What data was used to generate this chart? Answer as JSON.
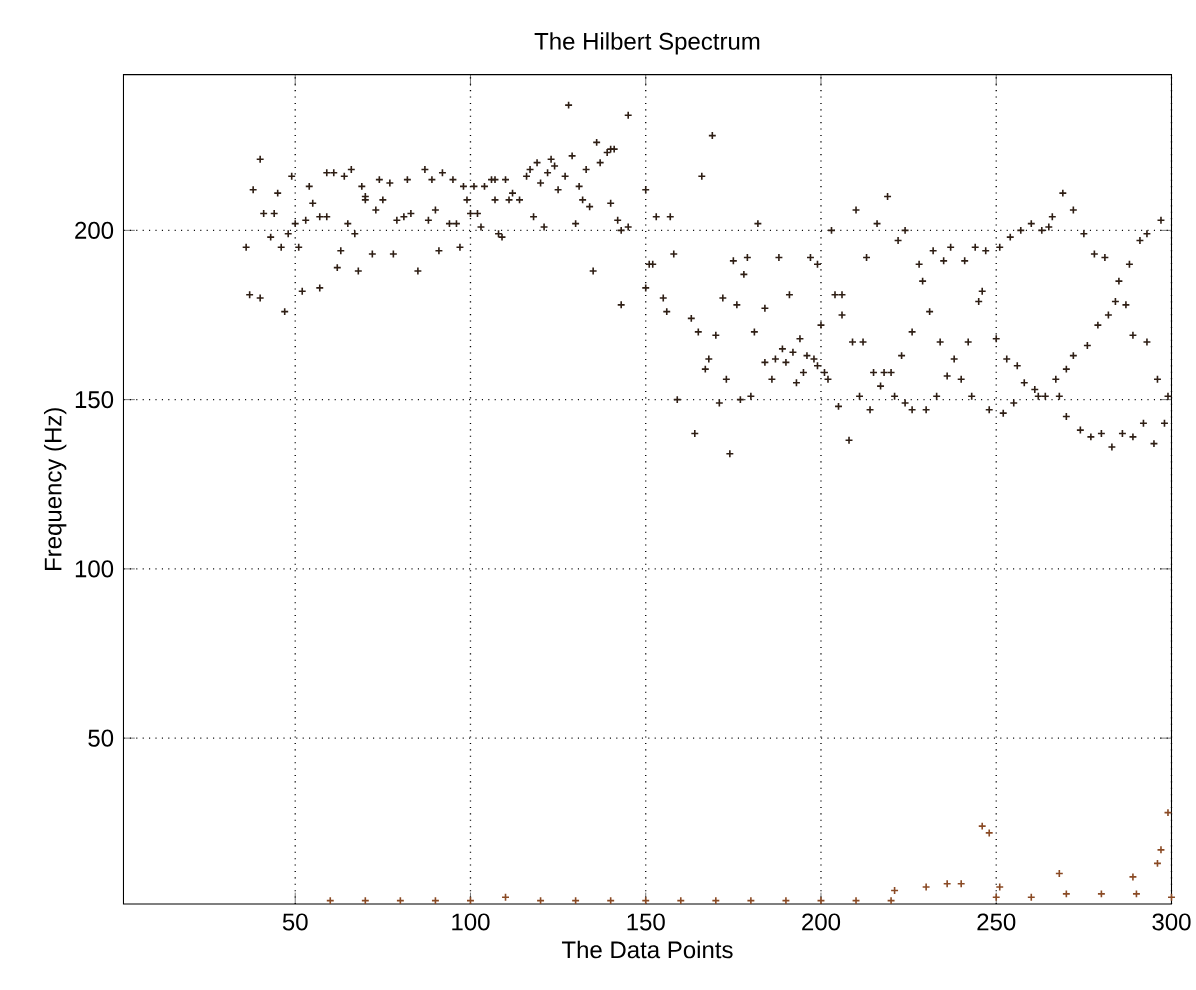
{
  "chart_data": {
    "type": "scatter",
    "title": "The Hilbert Spectrum",
    "xlabel": "The Data Points",
    "ylabel": "Frequency (Hz)",
    "xlim": [
      1,
      300
    ],
    "ylim": [
      1,
      246
    ],
    "xticks": [
      50,
      100,
      150,
      200,
      250,
      300
    ],
    "yticks": [
      50,
      100,
      150,
      200
    ],
    "grid": true,
    "marker": "cross",
    "series": [
      {
        "color": "#2e1e14",
        "x": [
          36,
          38,
          40,
          37,
          40,
          41,
          43,
          44,
          45,
          46,
          47,
          48,
          49,
          50,
          51,
          52,
          53,
          54,
          55,
          57,
          57,
          59,
          59,
          61,
          62,
          63,
          64,
          65,
          66,
          67,
          68,
          69,
          70,
          70,
          72,
          73,
          74,
          75,
          77,
          78,
          79,
          81,
          82,
          83,
          85,
          87,
          88,
          89,
          90,
          91,
          92,
          94,
          95,
          96,
          97,
          98,
          99,
          100,
          101,
          102,
          103,
          104,
          106,
          107,
          107,
          108,
          109,
          110,
          111,
          112,
          114,
          116,
          117,
          118,
          119,
          120,
          121,
          122,
          123,
          124,
          125,
          127,
          128,
          129,
          130,
          131,
          132,
          133,
          134,
          135,
          136,
          137,
          139,
          140,
          141,
          140,
          142,
          143,
          145,
          145,
          143,
          150,
          150,
          151,
          153,
          157,
          152,
          155,
          156,
          158,
          159,
          163,
          164,
          165,
          166,
          167,
          168,
          169,
          170,
          171,
          172,
          173,
          174,
          175,
          176,
          177,
          178,
          179,
          180,
          181,
          182,
          184,
          184,
          186,
          187,
          188,
          189,
          190,
          191,
          192,
          193,
          194,
          195,
          196,
          197,
          198,
          199,
          199,
          200,
          201,
          202,
          203,
          204,
          205,
          206,
          206,
          208,
          209,
          210,
          211,
          212,
          213,
          214,
          215,
          216,
          217,
          218,
          219,
          220,
          221,
          222,
          223,
          224,
          224,
          226,
          226,
          228,
          229,
          230,
          231,
          232,
          233,
          234,
          235,
          236,
          237,
          238,
          240,
          241,
          242,
          243,
          244,
          245,
          246,
          247,
          248,
          250,
          251,
          252,
          253,
          254,
          255,
          256,
          257,
          258,
          260,
          261,
          262,
          263,
          264,
          265,
          266,
          267,
          268,
          269,
          270,
          270,
          272,
          272,
          274,
          275,
          276,
          277,
          278,
          279,
          280,
          281,
          282,
          283,
          284,
          285,
          286,
          287,
          288,
          289,
          289,
          291,
          292,
          293,
          293,
          295,
          296,
          297,
          298,
          299
        ],
        "values": [
          195,
          212,
          221,
          181,
          180,
          205,
          198,
          205,
          211,
          195,
          176,
          199,
          216,
          202,
          195,
          182,
          203,
          213,
          208,
          204,
          183,
          217,
          204,
          217,
          189,
          194,
          216,
          202,
          218,
          199,
          188,
          213,
          210,
          209,
          193,
          206,
          215,
          209,
          214,
          193,
          203,
          204,
          215,
          205,
          188,
          218,
          203,
          215,
          206,
          194,
          217,
          202,
          215,
          202,
          195,
          213,
          209,
          205,
          213,
          205,
          201,
          213,
          215,
          209,
          215,
          199,
          198,
          215,
          209,
          211,
          209,
          216,
          218,
          204,
          220,
          214,
          201,
          217,
          221,
          219,
          212,
          216,
          237,
          222,
          202,
          213,
          209,
          218,
          207,
          188,
          226,
          220,
          223,
          224,
          224,
          208,
          203,
          200,
          201,
          234,
          178,
          212,
          183,
          190,
          204,
          204,
          190,
          180,
          176,
          193,
          150,
          174,
          140,
          170,
          216,
          159,
          162,
          228,
          169,
          149,
          180,
          156,
          134,
          191,
          178,
          150,
          187,
          192,
          151,
          170,
          202,
          161,
          177,
          156,
          162,
          192,
          165,
          161,
          181,
          164,
          155,
          168,
          158,
          163,
          192,
          162,
          160,
          190,
          172,
          158,
          156,
          200,
          181,
          148,
          181,
          175,
          138,
          167,
          206,
          151,
          167,
          192,
          147,
          158,
          202,
          154,
          158,
          210,
          158,
          151,
          197,
          163,
          149,
          200,
          170,
          147,
          190,
          185,
          147,
          176,
          194,
          151,
          167,
          191,
          157,
          195,
          162,
          156,
          191,
          167,
          151,
          195,
          179,
          182,
          194,
          147,
          168,
          195,
          146,
          162,
          198,
          149,
          160,
          200,
          155,
          202,
          153,
          151,
          200,
          151,
          201,
          204,
          156,
          151,
          211,
          159,
          145,
          206,
          163,
          141,
          199,
          166,
          139,
          193,
          172,
          140,
          192,
          175,
          136,
          179,
          185,
          140,
          178,
          190,
          139,
          169,
          197,
          143,
          167,
          199,
          137,
          156,
          203,
          143,
          151
        ]
      },
      {
        "color": "#8a4a24",
        "x": [
          60,
          70,
          80,
          90,
          100,
          110,
          120,
          130,
          140,
          150,
          160,
          170,
          180,
          190,
          200,
          210,
          220,
          221,
          230,
          236,
          240,
          246,
          248,
          250,
          251,
          260,
          268,
          270,
          280,
          289,
          290,
          296,
          297,
          299,
          300
        ],
        "values": [
          2,
          2,
          2,
          2,
          2,
          3,
          2,
          2,
          2,
          2,
          2,
          2,
          2,
          2,
          2,
          2,
          2,
          5,
          6,
          7,
          7,
          24,
          22,
          3,
          6,
          3,
          10,
          4,
          4,
          9,
          4,
          13,
          17,
          28,
          3
        ]
      }
    ]
  }
}
